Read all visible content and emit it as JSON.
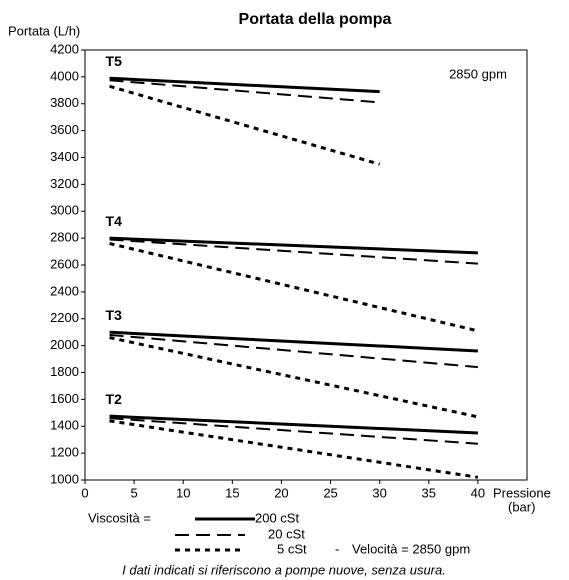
{
  "chart_data": {
    "type": "line",
    "title": "Portata della pompa",
    "ylabel": "Portata (L/h)",
    "xlabel": [
      "Pressione",
      "(bar)"
    ],
    "xlim": [
      0,
      45
    ],
    "ylim": [
      1000,
      4200
    ],
    "xticks": [
      0,
      5,
      10,
      15,
      20,
      25,
      30,
      35,
      40
    ],
    "yticks": [
      1000,
      1200,
      1400,
      1600,
      1800,
      2000,
      2200,
      2400,
      2600,
      2800,
      3000,
      3200,
      3400,
      3600,
      3800,
      4000,
      4200
    ],
    "annotation": "2850 gpm",
    "color": "#000000",
    "legend_title": "Viscosità =",
    "legend": [
      {
        "name": "200 cSt",
        "dash": "solid"
      },
      {
        "name": "20 cSt",
        "dash": "dashed"
      },
      {
        "name": "5 cSt",
        "dash": "dotted"
      }
    ],
    "legend_sep": "-",
    "legend_note": "Velocità = 2850 gpm",
    "groups": [
      {
        "label": "T5",
        "x": [
          2.5,
          30
        ],
        "lines": [
          [
            3990,
            3890
          ],
          [
            3975,
            3810
          ],
          [
            3930,
            3350
          ]
        ]
      },
      {
        "label": "T4",
        "x": [
          2.5,
          40
        ],
        "lines": [
          [
            2800,
            2690
          ],
          [
            2790,
            2610
          ],
          [
            2760,
            2110
          ]
        ]
      },
      {
        "label": "T3",
        "x": [
          2.5,
          40
        ],
        "lines": [
          [
            2100,
            1960
          ],
          [
            2080,
            1840
          ],
          [
            2060,
            1470
          ]
        ]
      },
      {
        "label": "T2",
        "x": [
          2.5,
          40
        ],
        "lines": [
          [
            1475,
            1350
          ],
          [
            1460,
            1270
          ],
          [
            1440,
            1020
          ]
        ]
      }
    ],
    "footnote": "I dati indicati si riferiscono a pompe nuove, senza usura."
  }
}
